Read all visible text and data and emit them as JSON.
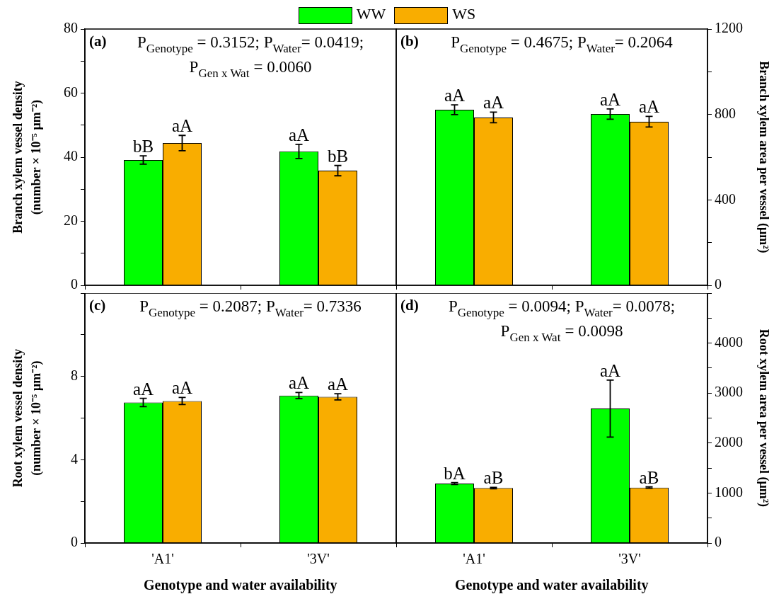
{
  "chart_data": [
    {
      "type": "bar",
      "categories": [
        null,
        null
      ],
      "ylabel": "Branch xylem vessel density\n(number × 10⁻⁵ μm⁻²)",
      "ylim": [
        0,
        80
      ],
      "yticks": [
        0,
        {
          "value": 10,
          "label": null
        },
        20,
        {
          "value": 30,
          "label": null
        },
        40,
        {
          "value": 50,
          "label": null
        },
        60,
        {
          "value": 70,
          "label": null
        },
        80
      ],
      "tick_labels": "y",
      "legend": "top",
      "annotations": [
        "(a)",
        "P$_{Genotype}$ = 0.3152; P$_{Water}$= 0.0419;",
        "P$_{Gen x Wat}$ = 0.0060"
      ],
      "series": [
        {
          "name": "WW",
          "color": "#00ff00",
          "values": [
            39.1,
            41.8
          ],
          "errors": [
            1.3,
            2.2
          ],
          "value_labels": [
            "bB",
            "aA"
          ]
        },
        {
          "name": "WS",
          "color": "#f9ad00",
          "values": [
            44.4,
            35.8
          ],
          "errors": [
            2.4,
            1.6
          ],
          "value_labels": [
            "aA",
            "bB"
          ]
        }
      ]
    },
    {
      "type": "bar",
      "categories": [
        null,
        null
      ],
      "ylabel": "Branch xylem area per vessel (μm²)",
      "ylim": [
        0,
        1200
      ],
      "yticks": [
        0,
        {
          "value": 200,
          "label": null
        },
        400,
        {
          "value": 600,
          "label": null
        },
        800,
        {
          "value": 1000,
          "label": null
        },
        1200
      ],
      "annotations": [
        "(b)",
        "P$_{Genotype}$ = 0.4675; P$_{Water}$= 0.2064"
      ],
      "series": [
        {
          "color": "#00ff00",
          "values": [
            822,
            802
          ],
          "errors": [
            23,
            24
          ],
          "value_labels": [
            "aA",
            "aA"
          ]
        },
        {
          "color": "#f9ad00",
          "values": [
            786,
            766
          ],
          "errors": [
            25,
            25
          ],
          "value_labels": [
            "aA",
            "aA"
          ]
        }
      ]
    },
    {
      "type": "bar",
      "categories": [
        "'A1'",
        "'3V'"
      ],
      "xlabel": "Genotype and water availability",
      "ylabel": "Root xylem vessel density\n(number × 10⁻⁵ μm⁻²)",
      "ylim": [
        0,
        12
      ],
      "yticks": [
        0,
        {
          "value": 2,
          "label": null
        },
        4,
        {
          "value": 6,
          "label": null
        },
        8,
        {
          "value": 10,
          "label": null
        },
        {
          "value": 12,
          "label": null
        }
      ],
      "annotations": [
        "(c)",
        "P$_{Genotype}$ = 0.2087; P$_{Water}$= 0.7336"
      ],
      "series": [
        {
          "color": "#00ff00",
          "values": [
            6.75,
            7.08
          ],
          "errors": [
            0.2,
            0.15
          ],
          "value_labels": [
            "aA",
            "aA"
          ]
        },
        {
          "color": "#f9ad00",
          "values": [
            6.82,
            7.02
          ],
          "errors": [
            0.17,
            0.15
          ],
          "value_labels": [
            "aA",
            "aA"
          ]
        }
      ]
    },
    {
      "type": "bar",
      "categories": [
        "'A1'",
        "'3V'"
      ],
      "xlabel": "Genotype and water availability",
      "ylabel": "Root xylem area per vessel (μm²)",
      "ylim": [
        0,
        5000
      ],
      "yticks": [
        0,
        {
          "value": 500,
          "label": null
        },
        1000,
        {
          "value": 1500,
          "label": null
        },
        2000,
        {
          "value": 2500,
          "label": null
        },
        3000,
        {
          "value": 3500,
          "label": null
        },
        4000,
        {
          "value": 4500,
          "label": null
        },
        {
          "value": 5000,
          "label": null
        }
      ],
      "annotations": [
        "(d)",
        "P$_{Genotype}$ = 0.0094; P$_{Water}$= 0.0078;",
        "P$_{Gen x Wat}$ = 0.0098"
      ],
      "series": [
        {
          "color": "#00ff00",
          "values": [
            1190,
            2690
          ],
          "errors": [
            20,
            570
          ],
          "value_labels": [
            "bA",
            "aA"
          ]
        },
        {
          "color": "#f9ad00",
          "values": [
            1100,
            1110
          ],
          "errors": [
            15,
            15
          ],
          "value_labels": [
            "aB",
            "aB"
          ]
        }
      ]
    }
  ]
}
